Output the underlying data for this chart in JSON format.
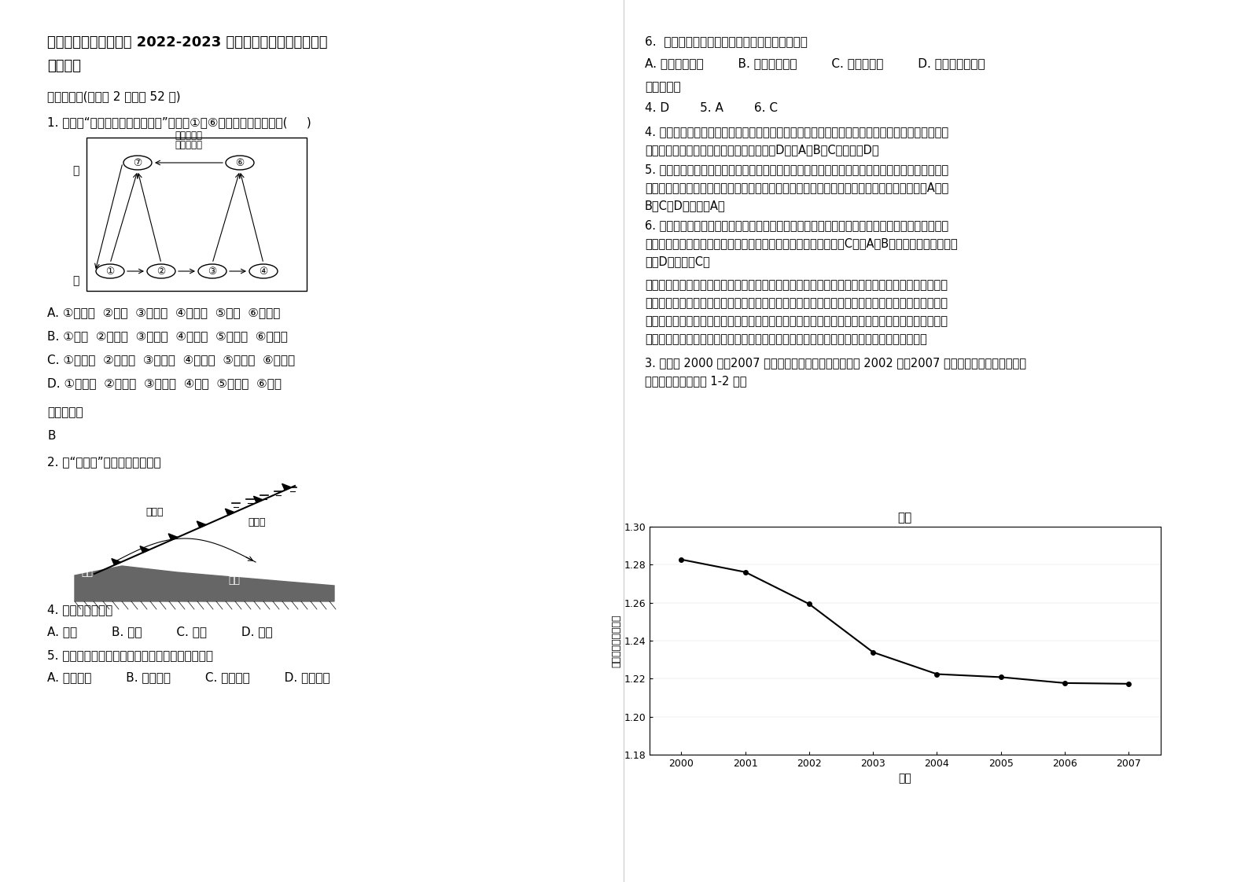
{
  "title_line1": "江西省宜春市澄塘中学 2022-2023 学年高一地理上学期期末试",
  "title_line2": "卷含解析",
  "section1": "一、选择题(每小题 2 分，共 52 分)",
  "q1_text": "1. 右图是“三大类岩石关系示意图”，图中①～⑥所代表的内容依次是(     )",
  "q1_optA": "A. ①喷出岩  ②岩浆  ③侵入岩  ④变质岩  ⑤岩浆  ⑥沉积岩",
  "q1_optB": "B. ①岩浆  ②侵入岩  ③变质岩  ④沉积岩  ⑤沉积物  ⑥喷出岩",
  "q1_optC": "C. ①喷出岩  ②沉积物  ③变质岩  ④沉积岩  ⑤岩浆岩  ⑥侵入岩",
  "q1_optD": "D. ①喷出岩  ②侵入岩  ③变质岩  ④岩浆  ⑤沉积岩  ⑥岩浆",
  "ref_answer_label": "参考答案：",
  "q1_answer": "B",
  "q2_text": "2. 读“昆明图”，回答下面小题。",
  "q4_text": "4. 此锋面多形成在",
  "q4_options": "A. 春季         B. 夏季         C. 秋季         D. 冬季",
  "q5_text": "5. 受昆明准静止锋的影响，贵阳附近的天气特征是",
  "q5_options": "A. 阴雨连绵         B. 晴空万里         C. 大雪纷飞         D. 暴风骤雨",
  "right_q6_text": "6.  据图分析影响昆明准静止锋形成的原因主要是",
  "right_q6_options": "A. 暖气团势力强         B. 冷气团势力强         C. 受地形影响         D. 受海陆位置影响",
  "right_ref_label": "参考答案：",
  "right_answers": "4. D        5. A        6. C",
  "right_ans4a": "4. 读图，昆明准静止锋图中，有冷空气到达贵阳地区，北方冷空气只有冬季才能到达南方的云贵高",
  "right_ans4b": "原地区，所以此锋面形成的季节多在冬季，D对。A、B、C错。故选D。",
  "right_ans5a": "5. 准静止锋是冷暖气团势力相当，相持不下，在该地区徘徊形成的，冷锋降雨在锋后，暖锋降雨在",
  "right_ans5b": "锋前，无论冷锋降雨还是暖锋降雨，降雨区都在贵阳一侧，所以贵阳的天气特征是阴雨连绵，A对。",
  "right_ans5c": "B、C、D错。故选A。",
  "right_ans6a": "6. 读图，可以看到，准静止锋是南下冷空气和西南暖湿气流在这里相遇，受云贵高原阻滞，冷暖气",
  "right_ans6b": "团势力相当，形成锋面。所以，准静止锋的主要成因是地形影响，C对。A、B错。与海陆位置关系不",
  "right_ans6c": "大，D错。故选C。",
  "dianqing_a": "【点晴】常见的锋面系统包括冷锋、暖锋和准静止锋。冷锋、暖锋过境过程中均出现降雨现象，但暖",
  "dianqing_b": "锋降雨一般持续时间较长、强度较小；冷锋降雨一般为短时期的强降雨。同时，冷锋过境过程中往往",
  "dianqing_c": "伴随气温降低、气压升高的过程；而暖锋过境过程中往往伴随气温升高、气压降低的过程。我国的准",
  "dianqing_d": "静止锋主要代表为江淮准静止锋和昆明准静止锋，无论何种锋面类型，降水都在冷气团一侧。",
  "q3_text": "3. 图甲为 2000 年～2007 年我国耕地面积变化图，图乙为 2002 年～2007 年我国各类土地面积变化情",
  "q3_text2": "况示意图，读图回答 1-2 题。",
  "chart_ylabel": "耕地面积（亿公顷）",
  "chart_xlabel": "年份",
  "chart_title": "图甲",
  "chart_years": [
    2000,
    2001,
    2002,
    2003,
    2004,
    2005,
    2006,
    2007
  ],
  "chart_values": [
    1.2827,
    1.2761,
    1.2593,
    1.2339,
    1.2224,
    1.2208,
    1.2177,
    1.2173
  ],
  "chart_ylim_min": 1.18,
  "chart_ylim_max": 1.3,
  "chart_yticks": [
    1.18,
    1.2,
    1.22,
    1.24,
    1.26,
    1.28,
    1.3
  ],
  "chart_ytick_labels": [
    "1.18",
    "1.20",
    "1.22",
    "1.24",
    "1.26",
    "1.28",
    "1.30"
  ],
  "bg_color": "#ffffff",
  "text_color": "#000000",
  "line_color": "#000000"
}
